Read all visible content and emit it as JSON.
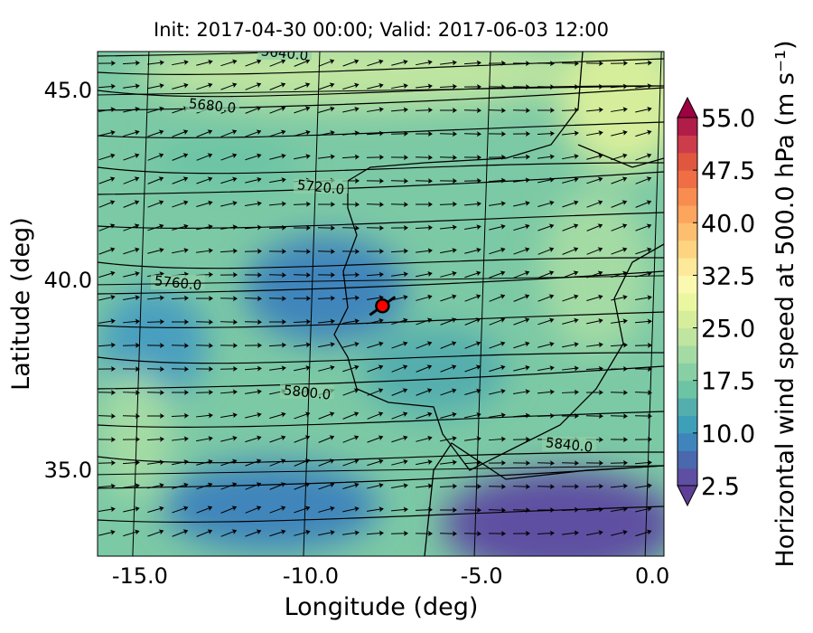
{
  "chart_data": {
    "type": "map",
    "title": "Init: 2017-04-30 00:00; Valid: 2017-06-03 12:00",
    "x_label": "Longitude (deg)",
    "y_label": "Latitude (deg)",
    "xlim": [
      -16.24,
      0.34
    ],
    "ylim": [
      32.71,
      46.0
    ],
    "xticks": [
      {
        "value": -15,
        "label": "-15.0"
      },
      {
        "value": -10,
        "label": "-10.0"
      },
      {
        "value": -5,
        "label": "-5.0"
      },
      {
        "value": 0,
        "label": "0.0"
      }
    ],
    "yticks": [
      {
        "value": 35,
        "label": "35.0"
      },
      {
        "value": 40,
        "label": "40.0"
      },
      {
        "value": 45,
        "label": "45.0"
      }
    ],
    "contour_labels": [
      "5640.0",
      "5680.0",
      "5720.0",
      "5760.0",
      "5800.0",
      "5840.0"
    ],
    "marker": {
      "lon": -7.9,
      "lat": 39.3,
      "color": "#ff0000"
    },
    "colorbar": {
      "label": "Horizontal wind speed at 500.0 hPa (m s⁻¹)",
      "lim": [
        2.5,
        55
      ],
      "ticks": [
        2.5,
        {
          "value": 10,
          "label": "10.0"
        },
        17.5,
        {
          "value": 25,
          "label": "25.0"
        },
        32.5,
        {
          "value": 40,
          "label": "40.0"
        },
        47.5,
        {
          "value": 55,
          "label": "55.0"
        }
      ],
      "colors": [
        "#5e4fa2",
        "#4a68ad",
        "#3f85bb",
        "#3e9fb9",
        "#54aead",
        "#6cc4a5",
        "#88d0a4",
        "#a4dba4",
        "#bfe5a0",
        "#d6ee9b",
        "#ebf7a0",
        "#fbf8b0",
        "#fee89a",
        "#fed481",
        "#fdbf6f",
        "#fca55d",
        "#f88c51",
        "#ef6e45",
        "#e0573f",
        "#cc3c4b",
        "#b01d48"
      ],
      "extend_colors": [
        "#5e3f98",
        "#9e0142"
      ]
    }
  }
}
